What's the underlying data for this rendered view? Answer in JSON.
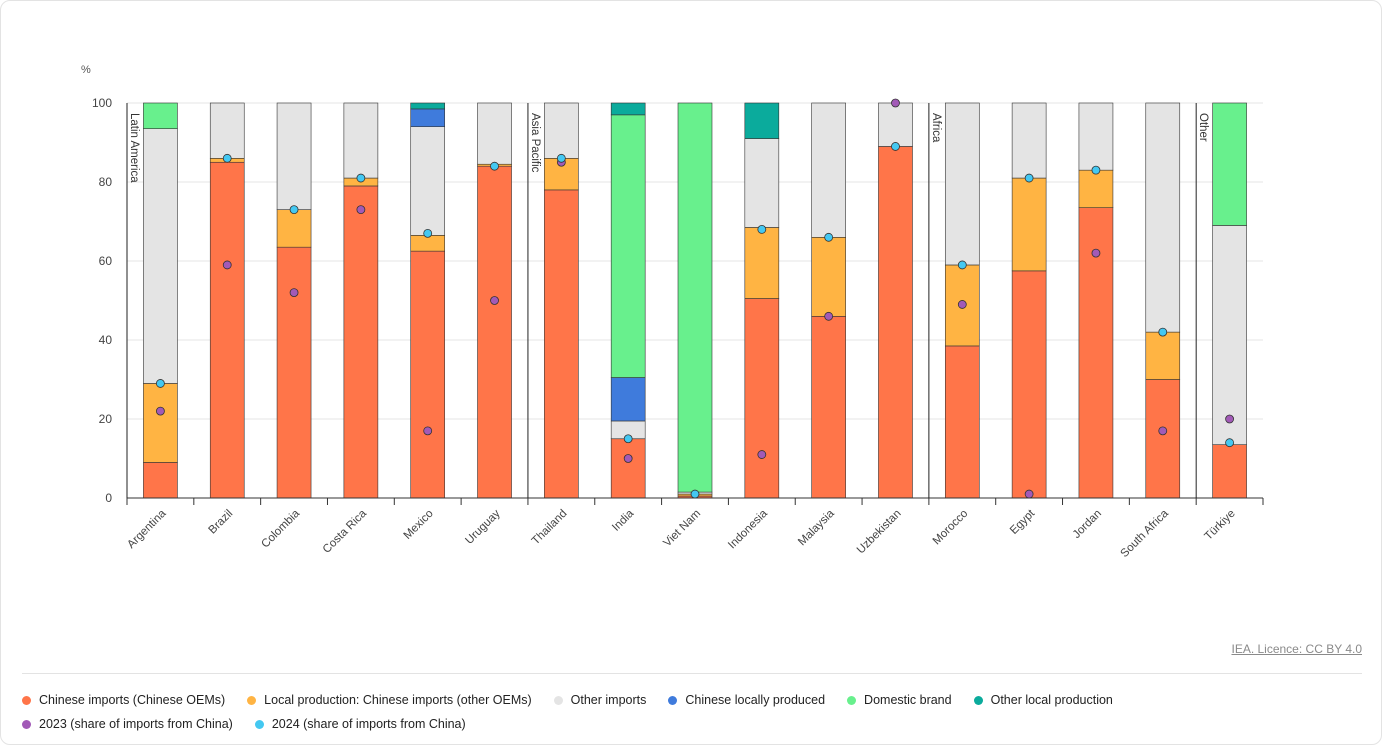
{
  "credit": "IEA. Licence: CC BY 4.0",
  "colors": {
    "chinese_oem": "#ff7549",
    "local_other_oem": "#ffb443",
    "other_imports": "#e4e4e4",
    "chinese_local": "#3f7bdc",
    "domestic": "#68f08d",
    "other_local": "#0bab9c",
    "y2023": "#a25ab7",
    "y2024": "#44c8f1"
  },
  "chart_data": {
    "type": "bar",
    "stacked": true,
    "ylabel": "%",
    "ylim": [
      0,
      100
    ],
    "yticks": [
      "0",
      "20",
      "40",
      "60",
      "80",
      "100"
    ],
    "groups": [
      {
        "label": "Latin America",
        "start": 0
      },
      {
        "label": "Asia Pacific",
        "start": 6
      },
      {
        "label": "Africa",
        "start": 12
      },
      {
        "label": "Other",
        "start": 16
      }
    ],
    "categories": [
      "Argentina",
      "Brazil",
      "Colombia",
      "Costa Rica",
      "Mexico",
      "Uruguay",
      "Thailand",
      "India",
      "Viet Nam",
      "Indonesia",
      "Malaysia",
      "Uzbekistan",
      "Morocco",
      "Egypt",
      "Jordan",
      "South Africa",
      "Türkiye"
    ],
    "series": [
      {
        "name": "Chinese imports (Chinese OEMs)",
        "key": "chinese_oem",
        "values": [
          9,
          85,
          63.5,
          79,
          62.5,
          84,
          78,
          15,
          0.5,
          50.5,
          46,
          89,
          38.5,
          57.5,
          73.5,
          30,
          13.5
        ]
      },
      {
        "name": "Local production: Chinese imports (other OEMs)",
        "key": "local_other_oem",
        "values": [
          20,
          1,
          9.5,
          2,
          4,
          0.5,
          8,
          0,
          0.5,
          18,
          20,
          0,
          20.5,
          23.5,
          9.5,
          12,
          0
        ]
      },
      {
        "name": "Other imports",
        "key": "other_imports",
        "values": [
          64.5,
          14,
          27,
          19,
          27.5,
          15.5,
          14,
          4.5,
          0.5,
          22.5,
          34,
          11,
          41,
          19,
          17,
          58,
          55.5
        ]
      },
      {
        "name": "Chinese locally produced",
        "key": "chinese_local",
        "values": [
          0,
          0,
          0,
          0,
          4.5,
          0,
          0,
          11,
          0,
          0,
          0,
          0,
          0,
          0,
          0,
          0,
          0
        ]
      },
      {
        "name": "Domestic brand",
        "key": "domestic",
        "values": [
          6.5,
          0,
          0,
          0,
          0,
          0,
          0,
          66.5,
          98.5,
          0,
          0,
          0,
          0,
          0,
          0,
          0,
          31
        ]
      },
      {
        "name": "Other local production",
        "key": "other_local",
        "values": [
          0,
          0,
          0,
          0,
          1.5,
          0,
          0,
          3,
          0,
          9,
          0,
          0,
          0,
          0,
          0,
          0,
          0
        ]
      }
    ],
    "markers": [
      {
        "name": "2023 (share of imports from China)",
        "key": "y2023",
        "values": [
          22,
          59,
          52,
          73,
          17,
          50,
          85,
          10,
          null,
          11,
          46,
          100,
          49,
          1,
          62,
          17,
          20
        ]
      },
      {
        "name": "2024 (share of imports from China)",
        "key": "y2024",
        "values": [
          29,
          86,
          73,
          81,
          67,
          84,
          86,
          15,
          1,
          68,
          66,
          89,
          59,
          81,
          83,
          42,
          14
        ]
      }
    ]
  }
}
